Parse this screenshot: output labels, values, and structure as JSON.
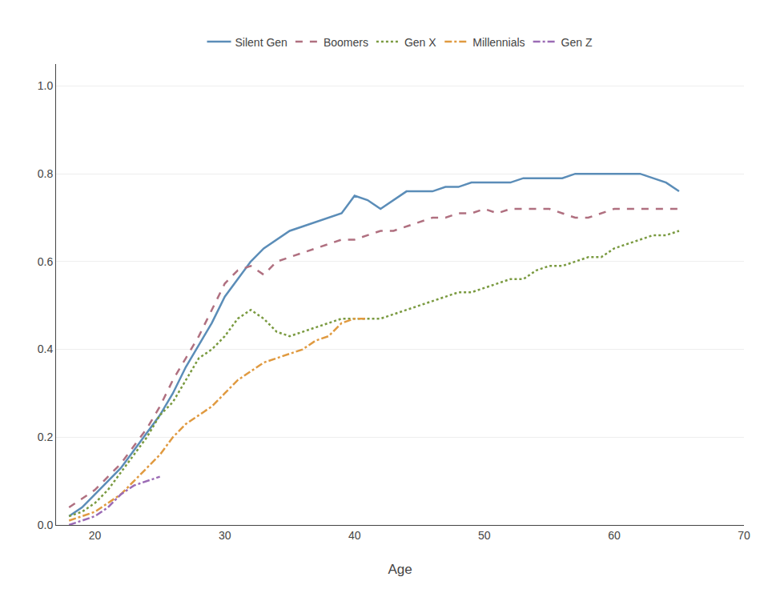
{
  "chart_data": {
    "type": "line",
    "xlabel": "Age",
    "xlim": [
      17,
      70
    ],
    "ylim": [
      0,
      1.05
    ],
    "xticks": [
      20,
      30,
      40,
      50,
      60,
      70
    ],
    "yticks": [
      {
        "value": 0,
        "label": "0.0"
      },
      0.2,
      0.4,
      0.6,
      0.8,
      {
        "value": 1.0,
        "label": "1.0"
      }
    ],
    "grid": true,
    "legend": "top",
    "series": [
      {
        "name": "Silent Gen",
        "color": "#5b8db8",
        "line_style": "solid",
        "x": [
          18,
          19,
          20,
          21,
          22,
          23,
          24,
          25,
          26,
          27,
          28,
          29,
          30,
          31,
          32,
          33,
          34,
          35,
          36,
          37,
          38,
          39,
          40,
          41,
          42,
          43,
          44,
          45,
          46,
          47,
          48,
          49,
          50,
          51,
          52,
          53,
          54,
          55,
          56,
          57,
          58,
          59,
          60,
          61,
          62,
          63,
          64,
          65
        ],
        "values": [
          0.02,
          0.04,
          0.07,
          0.1,
          0.13,
          0.17,
          0.21,
          0.25,
          0.3,
          0.36,
          0.41,
          0.46,
          0.52,
          0.56,
          0.6,
          0.63,
          0.65,
          0.67,
          0.68,
          0.69,
          0.7,
          0.71,
          0.75,
          0.74,
          0.72,
          0.74,
          0.76,
          0.76,
          0.76,
          0.77,
          0.77,
          0.78,
          0.78,
          0.78,
          0.78,
          0.79,
          0.79,
          0.79,
          0.79,
          0.8,
          0.8,
          0.8,
          0.8,
          0.8,
          0.8,
          0.79,
          0.78,
          0.76
        ]
      },
      {
        "name": "Boomers",
        "color": "#b07080",
        "line_style": "dashed",
        "x": [
          18,
          19,
          20,
          21,
          22,
          23,
          24,
          25,
          26,
          27,
          28,
          29,
          30,
          31,
          32,
          33,
          34,
          35,
          36,
          37,
          38,
          39,
          40,
          41,
          42,
          43,
          44,
          45,
          46,
          47,
          48,
          49,
          50,
          51,
          52,
          53,
          54,
          55,
          56,
          57,
          58,
          59,
          60,
          61,
          62,
          63,
          64,
          65
        ],
        "values": [
          0.04,
          0.06,
          0.08,
          0.11,
          0.14,
          0.18,
          0.22,
          0.27,
          0.33,
          0.38,
          0.43,
          0.49,
          0.55,
          0.58,
          0.59,
          0.57,
          0.6,
          0.61,
          0.62,
          0.63,
          0.64,
          0.65,
          0.65,
          0.66,
          0.67,
          0.67,
          0.68,
          0.69,
          0.7,
          0.7,
          0.71,
          0.71,
          0.72,
          0.71,
          0.72,
          0.72,
          0.72,
          0.72,
          0.71,
          0.7,
          0.7,
          0.71,
          0.72,
          0.72,
          0.72,
          0.72,
          0.72,
          0.72
        ]
      },
      {
        "name": "Gen X",
        "color": "#7a9a40",
        "line_style": "dotted",
        "x": [
          18,
          19,
          20,
          21,
          22,
          23,
          24,
          25,
          26,
          27,
          28,
          29,
          30,
          31,
          32,
          33,
          34,
          35,
          36,
          37,
          38,
          39,
          40,
          41,
          42,
          43,
          44,
          45,
          46,
          47,
          48,
          49,
          50,
          51,
          52,
          53,
          54,
          55,
          56,
          57,
          58,
          59,
          60,
          61,
          62,
          63,
          64,
          65
        ],
        "values": [
          0.02,
          0.03,
          0.05,
          0.08,
          0.12,
          0.16,
          0.2,
          0.25,
          0.28,
          0.33,
          0.38,
          0.4,
          0.43,
          0.47,
          0.49,
          0.47,
          0.44,
          0.43,
          0.44,
          0.45,
          0.46,
          0.47,
          0.47,
          0.47,
          0.47,
          0.48,
          0.49,
          0.5,
          0.51,
          0.52,
          0.53,
          0.53,
          0.54,
          0.55,
          0.56,
          0.56,
          0.58,
          0.59,
          0.59,
          0.6,
          0.61,
          0.61,
          0.63,
          0.64,
          0.65,
          0.66,
          0.66,
          0.67
        ]
      },
      {
        "name": "Millennials",
        "color": "#e09a40",
        "line_style": "dashdot",
        "x": [
          18,
          19,
          20,
          21,
          22,
          23,
          24,
          25,
          26,
          27,
          28,
          29,
          30,
          31,
          32,
          33,
          34,
          35,
          36,
          37,
          38,
          39,
          40,
          41
        ],
        "values": [
          0.01,
          0.02,
          0.03,
          0.05,
          0.07,
          0.1,
          0.13,
          0.16,
          0.2,
          0.23,
          0.25,
          0.27,
          0.3,
          0.33,
          0.35,
          0.37,
          0.38,
          0.39,
          0.4,
          0.42,
          0.43,
          0.46,
          0.47,
          0.47
        ]
      },
      {
        "name": "Gen Z",
        "color": "#9b6bb5",
        "line_style": "dashdot",
        "x": [
          18,
          19,
          20,
          21,
          22,
          23,
          24,
          25
        ],
        "values": [
          0.0,
          0.01,
          0.02,
          0.04,
          0.07,
          0.09,
          0.1,
          0.11
        ]
      }
    ]
  }
}
